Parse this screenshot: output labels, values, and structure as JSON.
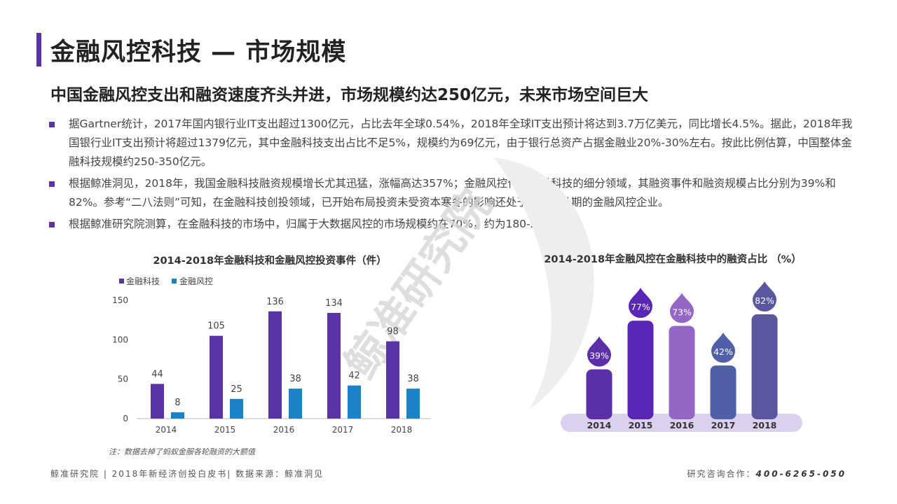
{
  "header": {
    "title": "金融风控科技 — 市场规模",
    "subtitle": "中国金融风控支出和融资速度齐头并进，市场规模约达250亿元，未来市场空间巨大"
  },
  "bullets": [
    "据Gartner统计，2017年国内银行业IT支出超过1300亿元，占比去年全球0.54%，2018年全球IT支出预计将达到3.7万亿美元，同比增长4.5%。据此，2018年我国银行业IT支出预计将超过1379亿元，其中金融科技支出占比不足5%，规模约为69亿元，由于银行总资产占据金融业20%-30%左右。按此比例估算，中国整体金融科技规模约250-350亿元。",
    "根据鲸准洞见，2018年，我国金融科技融资规模增长尤其迅猛，涨幅高达357%；金融风控作为金融科技的细分领域，其融资事件和融资规模占比分别为39%和82%。参考“二八法则”可知，在金融科技创投领域，已开始布局投资未受资本寒冬的影响还处于快速上升期的金融风控企业。",
    "根据鲸准研究院测算，在金融科技的市场中，归属于大数据风控的市场规模约在70%，约为180-250亿元。"
  ],
  "watermark": "鲸准研究院",
  "note": "注：数据去掉了蚂蚁金服各轮融资的大额值",
  "footer": {
    "left": "鲸准研究院 | 2018年新经济创投白皮书| 数据来源：鲸准洞见",
    "right_label": "研究咨询合作：",
    "right_phone": "400-6265-050"
  },
  "colors": {
    "accent": "#5a33a6",
    "fintech": "#5a33a6",
    "riskctrl": "#1b82c8",
    "bar2": [
      "#5b2fa8",
      "#5a26b5",
      "#9467c7",
      "#4f60a8",
      "#5a569f"
    ]
  },
  "chart_data": [
    {
      "type": "bar",
      "title": "2014-2018年金融科技和金融风控投资事件（件）",
      "categories": [
        "2014",
        "2015",
        "2016",
        "2017",
        "2018"
      ],
      "series": [
        {
          "name": "金融科技",
          "values": [
            44,
            105,
            136,
            134,
            98
          ]
        },
        {
          "name": "金融风控",
          "values": [
            8,
            25,
            38,
            42,
            38
          ]
        }
      ],
      "ylim": [
        0,
        150
      ],
      "yticks": [
        0,
        50,
        100,
        150
      ],
      "legend": "top-left",
      "grid": false
    },
    {
      "type": "bar",
      "title": "2014-2018年金融风控在金融科技中的融资占比 （%）",
      "categories": [
        "2014",
        "2015",
        "2016",
        "2017",
        "2018"
      ],
      "values": [
        39,
        77,
        73,
        42,
        82
      ],
      "labels": [
        "39%",
        "77%",
        "73%",
        "42%",
        "82%"
      ],
      "grid": false
    }
  ]
}
